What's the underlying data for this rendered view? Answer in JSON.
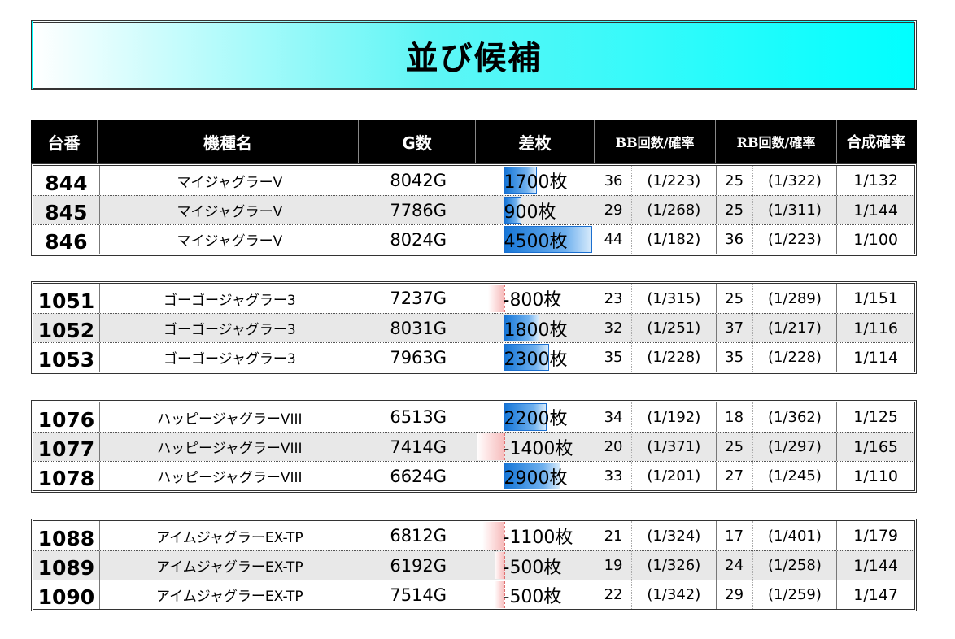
{
  "title": "並び候補",
  "columns": [
    "台番",
    "機種名",
    "G数",
    "差枚",
    "BB回数/確率",
    "RB回数/確率",
    "合成確率"
  ],
  "groups": [
    {
      "rows": [
        {
          "no": "844",
          "name": "マイジャグラーV",
          "games": "8042G",
          "diff": "1700枚",
          "diff_value": 1700,
          "bb": "36",
          "bb_rate": "(1/223)",
          "rb": "25",
          "rb_rate": "(1/322)",
          "total": "1/132"
        },
        {
          "no": "845",
          "name": "マイジャグラーV",
          "games": "7786G",
          "diff": "900枚",
          "diff_value": 900,
          "bb": "29",
          "bb_rate": "(1/268)",
          "rb": "25",
          "rb_rate": "(1/311)",
          "total": "1/144"
        },
        {
          "no": "846",
          "name": "マイジャグラーV",
          "games": "8024G",
          "diff": "4500枚",
          "diff_value": 4500,
          "bb": "44",
          "bb_rate": "(1/182)",
          "rb": "36",
          "rb_rate": "(1/223)",
          "total": "1/100"
        }
      ]
    },
    {
      "rows": [
        {
          "no": "1051",
          "name": "ゴーゴージャグラー3",
          "games": "7237G",
          "diff": "-800枚",
          "diff_value": -800,
          "bb": "23",
          "bb_rate": "(1/315)",
          "rb": "25",
          "rb_rate": "(1/289)",
          "total": "1/151"
        },
        {
          "no": "1052",
          "name": "ゴーゴージャグラー3",
          "games": "8031G",
          "diff": "1800枚",
          "diff_value": 1800,
          "bb": "32",
          "bb_rate": "(1/251)",
          "rb": "37",
          "rb_rate": "(1/217)",
          "total": "1/116"
        },
        {
          "no": "1053",
          "name": "ゴーゴージャグラー3",
          "games": "7963G",
          "diff": "2300枚",
          "diff_value": 2300,
          "bb": "35",
          "bb_rate": "(1/228)",
          "rb": "35",
          "rb_rate": "(1/228)",
          "total": "1/114"
        }
      ]
    },
    {
      "rows": [
        {
          "no": "1076",
          "name": "ハッピージャグラーVIII",
          "games": "6513G",
          "diff": "2200枚",
          "diff_value": 2200,
          "bb": "34",
          "bb_rate": "(1/192)",
          "rb": "18",
          "rb_rate": "(1/362)",
          "total": "1/125"
        },
        {
          "no": "1077",
          "name": "ハッピージャグラーVIII",
          "games": "7414G",
          "diff": "-1400枚",
          "diff_value": -1400,
          "bb": "20",
          "bb_rate": "(1/371)",
          "rb": "25",
          "rb_rate": "(1/297)",
          "total": "1/165"
        },
        {
          "no": "1078",
          "name": "ハッピージャグラーVIII",
          "games": "6624G",
          "diff": "2900枚",
          "diff_value": 2900,
          "bb": "33",
          "bb_rate": "(1/201)",
          "rb": "27",
          "rb_rate": "(1/245)",
          "total": "1/110"
        }
      ]
    },
    {
      "rows": [
        {
          "no": "1088",
          "name": "アイムジャグラーEX-TP",
          "games": "6812G",
          "diff": "-1100枚",
          "diff_value": -1100,
          "bb": "21",
          "bb_rate": "(1/324)",
          "rb": "17",
          "rb_rate": "(1/401)",
          "total": "1/179"
        },
        {
          "no": "1089",
          "name": "アイムジャグラーEX-TP",
          "games": "6192G",
          "diff": "-500枚",
          "diff_value": -500,
          "bb": "19",
          "bb_rate": "(1/326)",
          "rb": "24",
          "rb_rate": "(1/258)",
          "total": "1/144"
        },
        {
          "no": "1090",
          "name": "アイムジャグラーEX-TP",
          "games": "7514G",
          "diff": "-500枚",
          "diff_value": -500,
          "bb": "22",
          "bb_rate": "(1/342)",
          "rb": "29",
          "rb_rate": "(1/259)",
          "total": "1/147"
        }
      ]
    }
  ],
  "colors": {
    "title_gradient_end": "#00ffff",
    "header_bg": "#000000",
    "positive_bar": "#1777d8",
    "negative_bar": "#f6bcbc",
    "shaded_row": "#e8e8e8"
  }
}
